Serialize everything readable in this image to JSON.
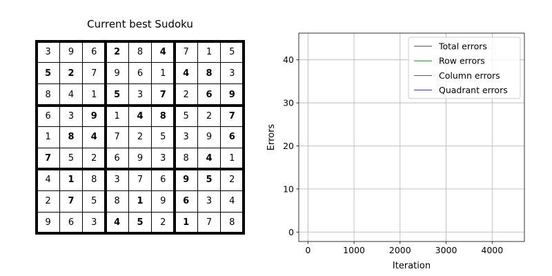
{
  "sudoku": {
    "title": "Current best Sudoku",
    "rows": [
      [
        3,
        9,
        6,
        2,
        8,
        4,
        7,
        1,
        5
      ],
      [
        5,
        2,
        7,
        9,
        6,
        1,
        4,
        8,
        3
      ],
      [
        8,
        4,
        1,
        5,
        3,
        7,
        2,
        6,
        9
      ],
      [
        6,
        3,
        9,
        1,
        4,
        8,
        5,
        2,
        7
      ],
      [
        1,
        8,
        4,
        7,
        2,
        5,
        3,
        9,
        6
      ],
      [
        7,
        5,
        2,
        6,
        9,
        3,
        8,
        4,
        1
      ],
      [
        4,
        1,
        8,
        3,
        7,
        6,
        9,
        5,
        2
      ],
      [
        2,
        7,
        5,
        8,
        1,
        9,
        6,
        3,
        4
      ],
      [
        9,
        6,
        3,
        4,
        5,
        2,
        1,
        7,
        8
      ]
    ],
    "bold_mask": [
      [
        0,
        0,
        0,
        1,
        0,
        1,
        0,
        0,
        0
      ],
      [
        1,
        1,
        0,
        0,
        0,
        0,
        1,
        1,
        0
      ],
      [
        0,
        0,
        0,
        1,
        0,
        1,
        0,
        1,
        1
      ],
      [
        0,
        0,
        1,
        0,
        1,
        1,
        0,
        0,
        1
      ],
      [
        0,
        1,
        1,
        0,
        0,
        0,
        0,
        0,
        1
      ],
      [
        1,
        0,
        0,
        0,
        0,
        0,
        0,
        1,
        0
      ],
      [
        0,
        1,
        0,
        0,
        0,
        0,
        1,
        1,
        0
      ],
      [
        0,
        1,
        0,
        0,
        1,
        0,
        1,
        0,
        0
      ],
      [
        0,
        0,
        0,
        1,
        1,
        0,
        1,
        0,
        0
      ]
    ]
  },
  "chart_data": {
    "type": "line",
    "title": "",
    "xlabel": "Iteration",
    "ylabel": "Errors",
    "xlim": [
      -200,
      4700
    ],
    "ylim": [
      -2.2,
      46.2
    ],
    "xticks": [
      0,
      1000,
      2000,
      3000,
      4000
    ],
    "yticks": [
      0,
      10,
      20,
      30,
      40
    ],
    "grid": true,
    "legend_position": "top-right",
    "series": [
      {
        "name": "Total errors",
        "color": "#000000",
        "x": [],
        "y": []
      },
      {
        "name": "Row errors",
        "color": "#008000",
        "x": [],
        "y": []
      },
      {
        "name": "Column errors",
        "color": "#800000",
        "x": [],
        "y": []
      },
      {
        "name": "Quadrant errors",
        "color": "#000080",
        "x": [],
        "y": []
      }
    ]
  }
}
